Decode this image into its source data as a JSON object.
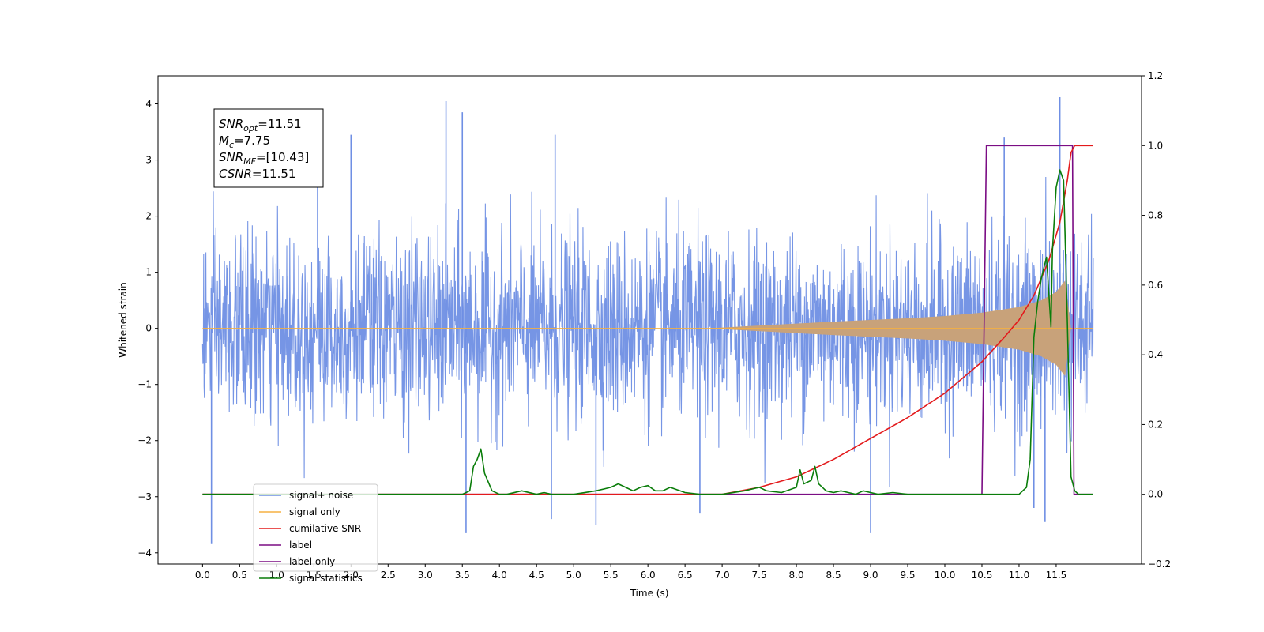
{
  "chart_data": {
    "type": "line",
    "xlabel": "Time (s)",
    "ylabel": "Whitened strain",
    "xlim": [
      -0.6,
      12.65
    ],
    "ylim_left": [
      -4.2,
      4.5
    ],
    "ylim_right": [
      -0.2,
      1.2
    ],
    "x_ticks": [
      0.0,
      0.5,
      1.0,
      1.5,
      2.0,
      2.5,
      3.0,
      3.5,
      4.0,
      4.5,
      5.0,
      5.5,
      6.0,
      6.5,
      7.0,
      7.5,
      8.0,
      8.5,
      9.0,
      9.5,
      10.0,
      10.5,
      11.0,
      11.5
    ],
    "x_tick_labels": [
      "0.0",
      "0.5",
      "1.0",
      "1.5",
      "2.0",
      "2.5",
      "3.0",
      "3.5",
      "4.0",
      "4.5",
      "5.0",
      "5.5",
      "6.0",
      "6.5",
      "7.0",
      "7.5",
      "8.0",
      "8.5",
      "9.0",
      "9.5",
      "10.0",
      "10.5",
      "11.0",
      "11.5"
    ],
    "y_left_ticks": [
      4,
      3,
      2,
      1,
      0,
      -1,
      -2,
      -3,
      -4
    ],
    "y_left_tick_labels": [
      "4",
      "3",
      "2",
      "1",
      "0",
      "−1",
      "−2",
      "−3",
      "−4"
    ],
    "y_right_ticks": [
      1.2,
      1.0,
      0.8,
      0.6,
      0.4,
      0.2,
      0.0,
      -0.2
    ],
    "y_right_tick_labels": [
      "1.2",
      "1.0",
      "0.8",
      "0.6",
      "0.4",
      "0.2",
      "0.0",
      "−0.2"
    ],
    "legend_placement": "lower-left",
    "grid": false,
    "series": [
      {
        "name": "signal+ noise",
        "axis": "left",
        "color": "#6f8fe4",
        "x_range": [
          0.0,
          12.0
        ],
        "envelope_peak": 1.55,
        "spikes": [
          {
            "x": 0.12,
            "y": -3.83
          },
          {
            "x": 3.28,
            "y": 4.05
          },
          {
            "x": 3.5,
            "y": 3.85
          },
          {
            "x": 3.55,
            "y": -3.65
          },
          {
            "x": 2.0,
            "y": 3.45
          },
          {
            "x": 4.75,
            "y": 3.45
          },
          {
            "x": 9.0,
            "y": -3.65
          },
          {
            "x": 11.55,
            "y": 4.12
          },
          {
            "x": 1.55,
            "y": 3.2
          },
          {
            "x": 4.7,
            "y": -3.4
          },
          {
            "x": 5.3,
            "y": -3.5
          },
          {
            "x": 6.7,
            "y": -3.3
          },
          {
            "x": 11.2,
            "y": -3.2
          },
          {
            "x": 11.35,
            "y": -3.45
          },
          {
            "x": 10.8,
            "y": 3.4
          }
        ]
      },
      {
        "name": "signal only",
        "axis": "left",
        "color": "#f5b042",
        "fill_color": "#c8a27a",
        "x_range": [
          0.0,
          12.0
        ],
        "amplitude_points": [
          [
            0.0,
            0.0
          ],
          [
            6.8,
            0.0
          ],
          [
            7.5,
            0.05
          ],
          [
            8.5,
            0.12
          ],
          [
            9.5,
            0.18
          ],
          [
            10.0,
            0.22
          ],
          [
            10.5,
            0.28
          ],
          [
            11.0,
            0.38
          ],
          [
            11.3,
            0.5
          ],
          [
            11.5,
            0.65
          ],
          [
            11.62,
            0.85
          ],
          [
            11.7,
            0.0
          ],
          [
            12.0,
            0.0
          ]
        ]
      },
      {
        "name": "cumilative SNR",
        "axis": "right",
        "color": "#e31a1c",
        "x": [
          0.0,
          7.0,
          7.5,
          8.0,
          8.5,
          9.0,
          9.5,
          10.0,
          10.5,
          10.8,
          11.0,
          11.2,
          11.4,
          11.55,
          11.65,
          11.7,
          11.75,
          12.0
        ],
        "y": [
          0.0,
          0.0,
          0.02,
          0.05,
          0.1,
          0.16,
          0.22,
          0.29,
          0.38,
          0.45,
          0.5,
          0.57,
          0.67,
          0.78,
          0.9,
          0.98,
          1.0,
          1.0
        ]
      },
      {
        "name": "label",
        "axis": "right",
        "color": "#7b0d84",
        "x": [
          0.0,
          10.5,
          10.56,
          11.72,
          11.74,
          12.0
        ],
        "y": [
          0.0,
          0.0,
          1.0,
          1.0,
          0.0,
          0.0
        ]
      },
      {
        "name": "label only",
        "axis": "right",
        "color": "#7b0d84",
        "x": [],
        "y": []
      },
      {
        "name": "signal statistics",
        "axis": "right",
        "color": "#0a7d0a",
        "x": [
          0.0,
          3.5,
          3.6,
          3.65,
          3.7,
          3.75,
          3.8,
          3.9,
          4.0,
          4.1,
          4.3,
          4.5,
          4.6,
          4.7,
          5.0,
          5.3,
          5.5,
          5.6,
          5.7,
          5.75,
          5.8,
          5.9,
          6.0,
          6.1,
          6.2,
          6.3,
          6.5,
          6.7,
          7.0,
          7.3,
          7.5,
          7.6,
          7.8,
          8.0,
          8.05,
          8.1,
          8.2,
          8.25,
          8.3,
          8.4,
          8.5,
          8.6,
          8.7,
          8.8,
          8.9,
          9.0,
          9.1,
          9.3,
          9.5,
          10.0,
          10.5,
          11.0,
          11.1,
          11.15,
          11.2,
          11.25,
          11.3,
          11.37,
          11.43,
          11.45,
          11.5,
          11.55,
          11.6,
          11.65,
          11.7,
          11.75,
          11.8,
          11.9,
          12.0
        ],
        "y": [
          0.0,
          0.0,
          0.01,
          0.08,
          0.1,
          0.13,
          0.06,
          0.01,
          0.0,
          0.0,
          0.01,
          0.0,
          0.005,
          0.0,
          0.0,
          0.01,
          0.02,
          0.03,
          0.02,
          0.015,
          0.01,
          0.02,
          0.025,
          0.01,
          0.01,
          0.02,
          0.005,
          0.0,
          0.0,
          0.01,
          0.02,
          0.01,
          0.005,
          0.02,
          0.07,
          0.03,
          0.04,
          0.08,
          0.03,
          0.01,
          0.005,
          0.01,
          0.005,
          0.0,
          0.01,
          0.005,
          0.0,
          0.005,
          0.0,
          0.0,
          0.0,
          0.0,
          0.02,
          0.1,
          0.45,
          0.55,
          0.62,
          0.68,
          0.48,
          0.7,
          0.88,
          0.93,
          0.9,
          0.5,
          0.05,
          0.01,
          0.0,
          0.0,
          0.0
        ]
      }
    ],
    "annotation": {
      "lines": [
        {
          "main": "SNR",
          "sub": "opt",
          "value": "=11.51"
        },
        {
          "main": "M",
          "sub": "c",
          "value": "=7.75"
        },
        {
          "main": "SNR",
          "sub": "MF",
          "value": "=[10.43]"
        },
        {
          "main": "CSNR",
          "sub": "",
          "value": "=11.51"
        }
      ]
    }
  }
}
